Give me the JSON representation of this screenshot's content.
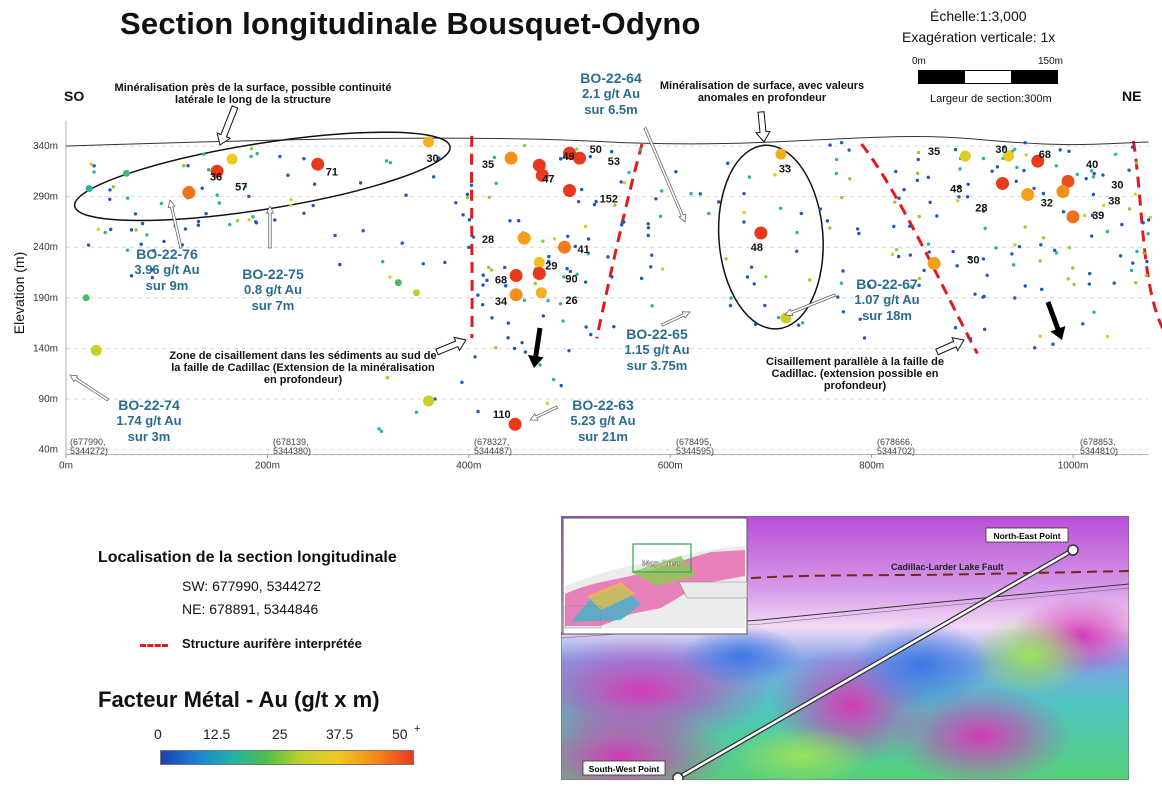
{
  "title": "Section longitudinale Bousquet-Odyno",
  "scale": {
    "ratio": "Échelle:1:3,000",
    "vertical_exaggeration": "Exagération verticale: 1x",
    "bar_start": "0m",
    "bar_end": "150m",
    "section_width": "Largeur de section:300m"
  },
  "directions": {
    "left": "SO",
    "right": "NE"
  },
  "chart_data": {
    "type": "scatter",
    "ylabel": "Elevation (m)",
    "x_ticks": [
      "0m",
      "200m",
      "400m",
      "600m",
      "800m",
      "1000m"
    ],
    "y_ticks": [
      "340m",
      "290m",
      "240m",
      "190m",
      "140m",
      "90m",
      "40m"
    ],
    "x_range": [
      0,
      1080
    ],
    "y_range": [
      35,
      365
    ],
    "color_scale_max": 50,
    "value_labels": [
      {
        "x": 135,
        "y": 310,
        "label": "36"
      },
      {
        "x": 160,
        "y": 300,
        "label": "57"
      },
      {
        "x": 250,
        "y": 315,
        "label": "71"
      },
      {
        "x": 350,
        "y": 328,
        "label": "30"
      },
      {
        "x": 405,
        "y": 322,
        "label": "35"
      },
      {
        "x": 485,
        "y": 330,
        "label": "49"
      },
      {
        "x": 465,
        "y": 308,
        "label": "47"
      },
      {
        "x": 512,
        "y": 337,
        "label": "50"
      },
      {
        "x": 530,
        "y": 325,
        "label": "53"
      },
      {
        "x": 522,
        "y": 288,
        "label": "152"
      },
      {
        "x": 405,
        "y": 248,
        "label": "28"
      },
      {
        "x": 500,
        "y": 238,
        "label": "41"
      },
      {
        "x": 468,
        "y": 222,
        "label": "29"
      },
      {
        "x": 488,
        "y": 209,
        "label": "90"
      },
      {
        "x": 418,
        "y": 208,
        "label": "68"
      },
      {
        "x": 418,
        "y": 187,
        "label": "34"
      },
      {
        "x": 488,
        "y": 188,
        "label": "26"
      },
      {
        "x": 416,
        "y": 75,
        "label": "110"
      },
      {
        "x": 700,
        "y": 318,
        "label": "33"
      },
      {
        "x": 672,
        "y": 240,
        "label": "48"
      },
      {
        "x": 848,
        "y": 335,
        "label": "35"
      },
      {
        "x": 915,
        "y": 337,
        "label": "30"
      },
      {
        "x": 958,
        "y": 332,
        "label": "68"
      },
      {
        "x": 1005,
        "y": 322,
        "label": "40"
      },
      {
        "x": 870,
        "y": 298,
        "label": "48"
      },
      {
        "x": 895,
        "y": 279,
        "label": "28"
      },
      {
        "x": 960,
        "y": 284,
        "label": "32"
      },
      {
        "x": 1030,
        "y": 302,
        "label": "30"
      },
      {
        "x": 1027,
        "y": 286,
        "label": "38"
      },
      {
        "x": 1011,
        "y": 272,
        "label": "39"
      },
      {
        "x": 887,
        "y": 228,
        "label": "30"
      }
    ],
    "points": [
      {
        "x": 122,
        "y": 294,
        "v": 45
      },
      {
        "x": 150,
        "y": 315,
        "v": 50
      },
      {
        "x": 165,
        "y": 327,
        "v": 35
      },
      {
        "x": 250,
        "y": 322,
        "v": 50
      },
      {
        "x": 360,
        "y": 344,
        "v": 38
      },
      {
        "x": 442,
        "y": 328,
        "v": 42
      },
      {
        "x": 470,
        "y": 321,
        "v": 50
      },
      {
        "x": 473,
        "y": 311,
        "v": 50
      },
      {
        "x": 500,
        "y": 333,
        "v": 50
      },
      {
        "x": 510,
        "y": 328,
        "v": 50
      },
      {
        "x": 500,
        "y": 296,
        "v": 50
      },
      {
        "x": 455,
        "y": 249,
        "v": 40
      },
      {
        "x": 495,
        "y": 240,
        "v": 44
      },
      {
        "x": 470,
        "y": 225,
        "v": 36
      },
      {
        "x": 470,
        "y": 214,
        "v": 50
      },
      {
        "x": 447,
        "y": 212,
        "v": 50
      },
      {
        "x": 447,
        "y": 193,
        "v": 42
      },
      {
        "x": 472,
        "y": 195,
        "v": 38
      },
      {
        "x": 446,
        "y": 65,
        "v": 50
      },
      {
        "x": 710,
        "y": 332,
        "v": 38
      },
      {
        "x": 690,
        "y": 254,
        "v": 50
      },
      {
        "x": 936,
        "y": 330,
        "v": 35
      },
      {
        "x": 965,
        "y": 325,
        "v": 50
      },
      {
        "x": 930,
        "y": 303,
        "v": 50
      },
      {
        "x": 955,
        "y": 292,
        "v": 40
      },
      {
        "x": 995,
        "y": 305,
        "v": 48
      },
      {
        "x": 990,
        "y": 295,
        "v": 42
      },
      {
        "x": 1000,
        "y": 270,
        "v": 45
      },
      {
        "x": 862,
        "y": 224,
        "v": 40
      },
      {
        "x": 893,
        "y": 330,
        "v": 32
      },
      {
        "x": 30,
        "y": 138,
        "v": 30
      },
      {
        "x": 360,
        "y": 88,
        "v": 30
      },
      {
        "x": 715,
        "y": 170,
        "v": 30
      },
      {
        "x": 23,
        "y": 298,
        "v": 15
      },
      {
        "x": 60,
        "y": 313,
        "v": 18
      },
      {
        "x": 20,
        "y": 190,
        "v": 20
      },
      {
        "x": 330,
        "y": 205,
        "v": 20
      },
      {
        "x": 348,
        "y": 195,
        "v": 28
      }
    ]
  },
  "annotations": {
    "near_surface": "Minéralisation près de la surface, possible continuité latérale le long de la structure",
    "surface_anomalous": "Minéralisation de surface, avec valeurs anomales en profondeur",
    "shear_zone": "Zone de cisaillement dans les sédiments au sud de la faille de Cadillac (Extension de la minéralisation en profondeur)",
    "parallel_shear": "Cisaillement parallèle à la faille de Cadillac. (extension possible en profondeur)"
  },
  "drillholes": [
    {
      "id": "BO-22-76",
      "grade": "3.96 g/t Au",
      "length": "sur 9m"
    },
    {
      "id": "BO-22-75",
      "grade": "0.8 g/t Au",
      "length": "sur 7m"
    },
    {
      "id": "BO-22-74",
      "grade": "1.74 g/t Au",
      "length": "sur 3m"
    },
    {
      "id": "BO-22-64",
      "grade": "2.1 g/t Au",
      "length": "sur 6.5m"
    },
    {
      "id": "BO-22-65",
      "grade": "1.15 g/t Au",
      "length": "sur 3.75m"
    },
    {
      "id": "BO-22-63",
      "grade": "5.23 g/t Au",
      "length": "sur 21m"
    },
    {
      "id": "BO-22-67",
      "grade": "1.07 g/t Au",
      "length": "sur 18m"
    }
  ],
  "coord_ticks": [
    {
      "a": "(677990,",
      "b": "5344272)"
    },
    {
      "a": "(678139,",
      "b": "5344380)"
    },
    {
      "a": "(678327,",
      "b": "5344487)"
    },
    {
      "a": "(678495,",
      "b": "5344595)"
    },
    {
      "a": "(678666,",
      "b": "5344702)"
    },
    {
      "a": "(678853,",
      "b": "5344810)"
    }
  ],
  "legend": {
    "location_title": "Localisation de la section longitudinale",
    "sw": "SW:  677990, 5344272",
    "ne": "NE:  678891, 5344846",
    "structure": "Structure aurifère interprétée",
    "metal_title": "Facteur Métal - Au (g/t x m)",
    "ticks": [
      "0",
      "12.5",
      "25",
      "37.5",
      "50"
    ],
    "plus": "+"
  },
  "map": {
    "ne_point": "North-East Point",
    "sw_point": "South-West Point",
    "fault": "Cadillac-Larder Lake Fault",
    "map_area": "Map Area"
  },
  "colors": {
    "hole_text": "#2a6c8f",
    "fault_red": "#e01b1b"
  }
}
